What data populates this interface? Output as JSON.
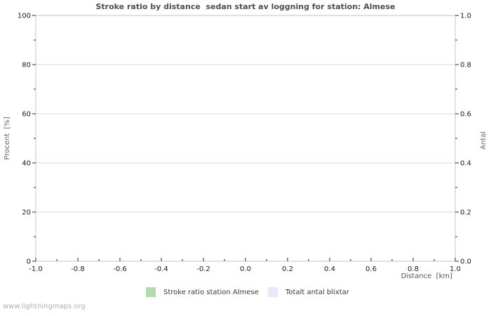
{
  "page": {
    "watermark": "www.lightningmaps.org"
  },
  "chart_data": {
    "type": "bar",
    "title": "Stroke ratio by distance  sedan start av loggning for station: Almese",
    "xlabel": "Distance  [km]",
    "ylabel_left": "Procent  [%]",
    "ylabel_right": "Antal",
    "xlim": [
      -1.0,
      1.0
    ],
    "ylim_left": [
      0,
      100
    ],
    "ylim_right": [
      0.0,
      1.0
    ],
    "x_tick_values": [
      -1.0,
      -0.8,
      -0.6,
      -0.4,
      -0.2,
      0.0,
      0.2,
      0.4,
      0.6,
      0.8,
      1.0
    ],
    "x_tick_labels": [
      "-1.0",
      "-0.8",
      "-0.6",
      "-0.4",
      "-0.2",
      "0.0",
      "0.2",
      "0.4",
      "0.6",
      "0.8",
      "1.0"
    ],
    "y_left_tick_values": [
      0,
      20,
      40,
      60,
      80,
      100
    ],
    "y_left_tick_labels": [
      "0",
      "20",
      "40",
      "60",
      "80",
      "100"
    ],
    "y_right_tick_values": [
      0.0,
      0.2,
      0.4,
      0.6,
      0.8,
      1.0
    ],
    "y_right_tick_labels": [
      "0.0",
      "0.2",
      "0.4",
      "0.6",
      "0.8",
      "1.0"
    ],
    "grid": "horizontal major gridlines only",
    "legend_position": "bottom-center",
    "series": [
      {
        "name": "Stroke ratio station Almese",
        "color": "#b0dcb0",
        "x": [],
        "y": []
      },
      {
        "name": "Totalt antal blixtar",
        "color": "#e8e8f8",
        "x": [],
        "y": []
      }
    ]
  }
}
